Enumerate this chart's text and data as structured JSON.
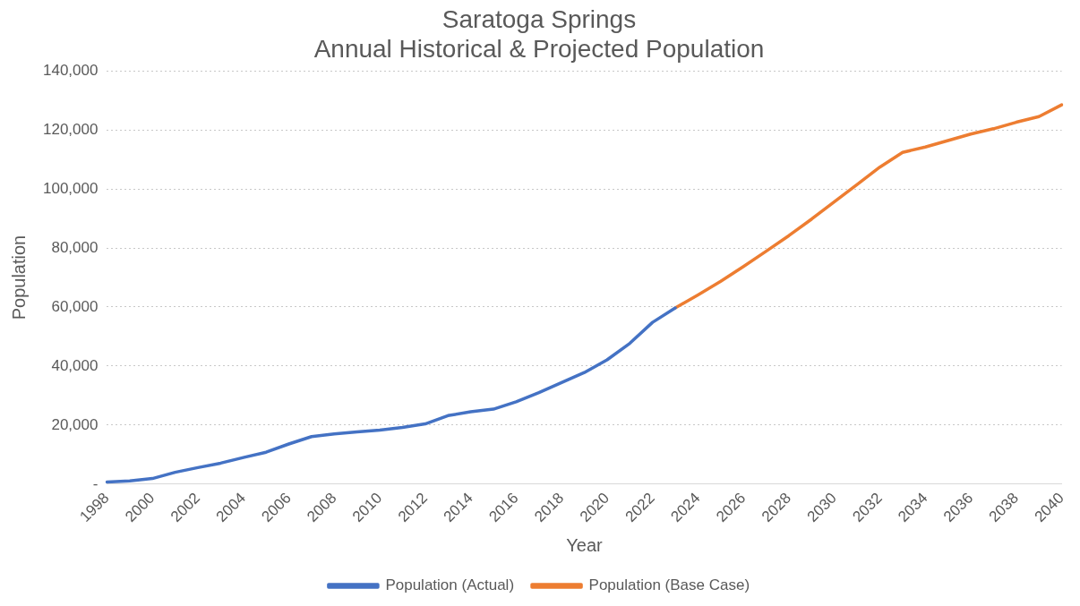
{
  "chart_data": {
    "type": "line",
    "title": "Saratoga Springs\nAnnual Historical & Projected Population",
    "xlabel": "Year",
    "ylabel": "Population",
    "categories": [
      "1998",
      null,
      "2000",
      null,
      "2002",
      null,
      "2004",
      null,
      "2006",
      null,
      "2008",
      null,
      "2010",
      null,
      "2012",
      null,
      "2014",
      null,
      "2016",
      null,
      "2018",
      null,
      "2020",
      null,
      "2022",
      null,
      "2024",
      null,
      "2026",
      null,
      "2028",
      null,
      "2030",
      null,
      "2032",
      null,
      "2034",
      null,
      "2036",
      null,
      "2038",
      null,
      "2040"
    ],
    "series": [
      {
        "name": "Population (Actual)",
        "color": "#4472c4",
        "values": [
          700,
          1100,
          1900,
          4000,
          5600,
          7100,
          9000,
          10800,
          13600,
          16100,
          17000,
          17700,
          18300,
          19200,
          20400,
          23200,
          24500,
          25400,
          27900,
          31000,
          34400,
          37800,
          42100,
          47700,
          54800,
          59700,
          null,
          null,
          null,
          null,
          null,
          null,
          null,
          null,
          null,
          null,
          null,
          null,
          null,
          null,
          null,
          null,
          null
        ]
      },
      {
        "name": "Population (Base Case)",
        "color": "#ed7d31",
        "values": [
          null,
          null,
          null,
          null,
          null,
          null,
          null,
          null,
          null,
          null,
          null,
          null,
          null,
          null,
          null,
          null,
          null,
          null,
          null,
          null,
          null,
          null,
          null,
          null,
          null,
          59700,
          64100,
          68700,
          73700,
          78900,
          84200,
          89800,
          95700,
          101500,
          107400,
          112400,
          114200,
          116400,
          118600,
          120400,
          122600,
          124500,
          128500
        ]
      }
    ],
    "ylim": [
      0,
      140000
    ],
    "yticks": [
      {
        "value": 0,
        "label": "-"
      },
      {
        "value": 20000,
        "label": "20,000"
      },
      {
        "value": 40000,
        "label": "40,000"
      },
      {
        "value": 60000,
        "label": "60,000"
      },
      {
        "value": 80000,
        "label": "80,000"
      },
      {
        "value": 100000,
        "label": "100,000"
      },
      {
        "value": 120000,
        "label": "120,000"
      },
      {
        "value": 140000,
        "label": "140,000"
      }
    ],
    "grid": "y",
    "legend": "bottom",
    "marker": "none",
    "line_style": "solid"
  }
}
